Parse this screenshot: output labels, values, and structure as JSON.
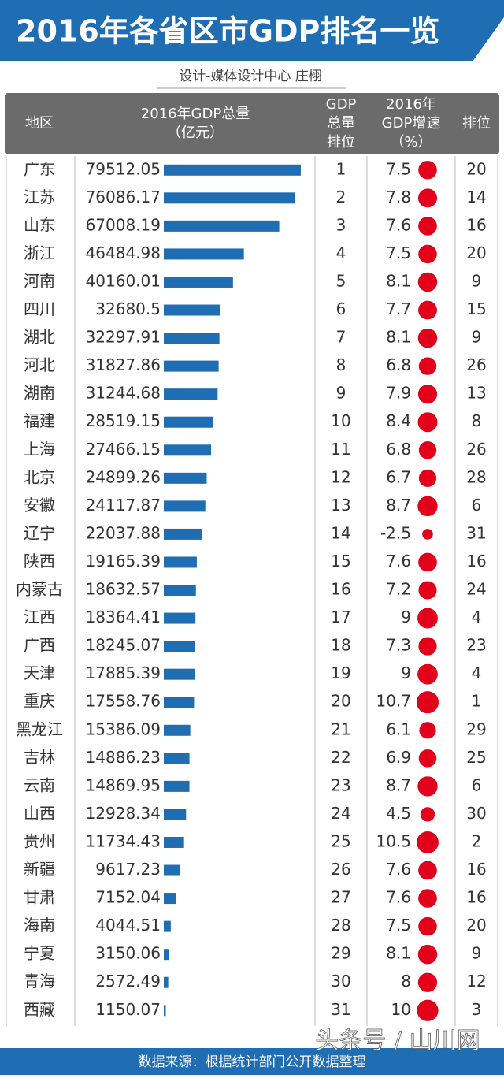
{
  "header": {
    "title": "2016年各省区市GDP排名一览",
    "subtitle": "设计-媒体设计中心  庄栩"
  },
  "table": {
    "columns": [
      [
        "地区"
      ],
      [
        "2016年GDP总量",
        "（亿元）"
      ],
      [
        "GDP",
        "总量",
        "排位"
      ],
      [
        "2016年",
        "GDP增速",
        "（%）"
      ],
      [
        "排位"
      ]
    ],
    "rows": [
      [
        "广东",
        79512.05,
        1,
        7.5,
        20
      ],
      [
        "江苏",
        76086.17,
        2,
        7.8,
        14
      ],
      [
        "山东",
        67008.19,
        3,
        7.6,
        16
      ],
      [
        "浙江",
        46484.98,
        4,
        7.5,
        20
      ],
      [
        "河南",
        40160.01,
        5,
        8.1,
        9
      ],
      [
        "四川",
        32680.5,
        6,
        7.7,
        15
      ],
      [
        "湖北",
        32297.91,
        7,
        8.1,
        9
      ],
      [
        "河北",
        31827.86,
        8,
        6.8,
        26
      ],
      [
        "湖南",
        31244.68,
        9,
        7.9,
        13
      ],
      [
        "福建",
        28519.15,
        10,
        8.4,
        8
      ],
      [
        "上海",
        27466.15,
        11,
        6.8,
        26
      ],
      [
        "北京",
        24899.26,
        12,
        6.7,
        28
      ],
      [
        "安徽",
        24117.87,
        13,
        8.7,
        6
      ],
      [
        "辽宁",
        22037.88,
        14,
        -2.5,
        31
      ],
      [
        "陕西",
        19165.39,
        15,
        7.6,
        16
      ],
      [
        "内蒙古",
        18632.57,
        16,
        7.2,
        24
      ],
      [
        "江西",
        18364.41,
        17,
        9,
        4
      ],
      [
        "广西",
        18245.07,
        18,
        7.3,
        23
      ],
      [
        "天津",
        17885.39,
        19,
        9,
        4
      ],
      [
        "重庆",
        17558.76,
        20,
        10.7,
        1
      ],
      [
        "黑龙江",
        15386.09,
        21,
        6.1,
        29
      ],
      [
        "吉林",
        14886.23,
        22,
        6.9,
        25
      ],
      [
        "云南",
        14869.95,
        23,
        8.7,
        6
      ],
      [
        "山西",
        12928.34,
        24,
        4.5,
        30
      ],
      [
        "贵州",
        11734.43,
        25,
        10.5,
        2
      ],
      [
        "新疆",
        9617.23,
        26,
        7.6,
        16
      ],
      [
        "甘肃",
        7152.04,
        27,
        7.6,
        16
      ],
      [
        "海南",
        4044.51,
        28,
        7.5,
        20
      ],
      [
        "宁夏",
        3150.06,
        29,
        8.1,
        9
      ],
      [
        "青海",
        2572.49,
        30,
        8,
        12
      ],
      [
        "西藏",
        1150.07,
        31,
        10,
        3
      ]
    ]
  },
  "footer": {
    "source": "数据来源：根据统计部门公开数据整理",
    "watermark": "头条号 / 山川网"
  }
}
